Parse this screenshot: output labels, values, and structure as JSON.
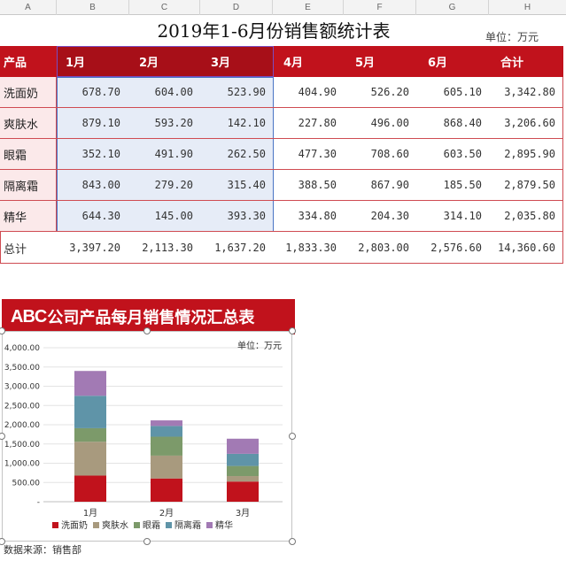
{
  "columns": [
    "A",
    "B",
    "C",
    "D",
    "E",
    "F",
    "G",
    "H"
  ],
  "title": "2019年1-6月份销售额统计表",
  "unit": "单位：万元",
  "table": {
    "headers": [
      "产品",
      "1月",
      "2月",
      "3月",
      "4月",
      "5月",
      "6月",
      "合计"
    ],
    "rows": [
      {
        "name": "洗面奶",
        "values": [
          "678.70",
          "604.00",
          "523.90",
          "404.90",
          "526.20",
          "605.10",
          "3,342.80"
        ]
      },
      {
        "name": "爽肤水",
        "values": [
          "879.10",
          "593.20",
          "142.10",
          "227.80",
          "496.00",
          "868.40",
          "3,206.60"
        ]
      },
      {
        "name": "眼霜",
        "values": [
          "352.10",
          "491.90",
          "262.50",
          "477.30",
          "708.60",
          "603.50",
          "2,895.90"
        ]
      },
      {
        "name": "隔离霜",
        "values": [
          "843.00",
          "279.20",
          "315.40",
          "388.50",
          "867.90",
          "185.50",
          "2,879.50"
        ]
      },
      {
        "name": "精华",
        "values": [
          "644.30",
          "145.00",
          "393.30",
          "334.80",
          "204.30",
          "314.10",
          "2,035.80"
        ]
      }
    ],
    "total": {
      "name": "总计",
      "values": [
        "3,397.20",
        "2,113.30",
        "1,637.20",
        "1,833.30",
        "2,803.00",
        "2,576.60",
        "14,360.60"
      ]
    }
  },
  "chart": {
    "banner_abc": "ABC",
    "banner_rest": "公司产品每月销售情况汇总表",
    "unit": "单位：万元",
    "source": "数据来源：销售部"
  },
  "chart_data": {
    "type": "bar",
    "stacked": true,
    "categories": [
      "1月",
      "2月",
      "3月"
    ],
    "series": [
      {
        "name": "洗面奶",
        "color": "#c1121c",
        "values": [
          678.7,
          604.0,
          523.9
        ]
      },
      {
        "name": "爽肤水",
        "color": "#a89a7e",
        "values": [
          879.1,
          593.2,
          142.1
        ]
      },
      {
        "name": "眼霜",
        "color": "#7c9a6a",
        "values": [
          352.1,
          491.9,
          262.5
        ]
      },
      {
        "name": "隔离霜",
        "color": "#5f94a8",
        "values": [
          843.0,
          279.2,
          315.4
        ]
      },
      {
        "name": "精华",
        "color": "#a27ab4",
        "values": [
          644.3,
          145.0,
          393.3
        ]
      }
    ],
    "ylim": [
      0,
      4000
    ],
    "yticks": [
      "-",
      "500.00",
      "1,000.00",
      "1,500.00",
      "2,000.00",
      "2,500.00",
      "3,000.00",
      "3,500.00",
      "4,000.00"
    ],
    "grid": true,
    "legend_position": "bottom"
  }
}
